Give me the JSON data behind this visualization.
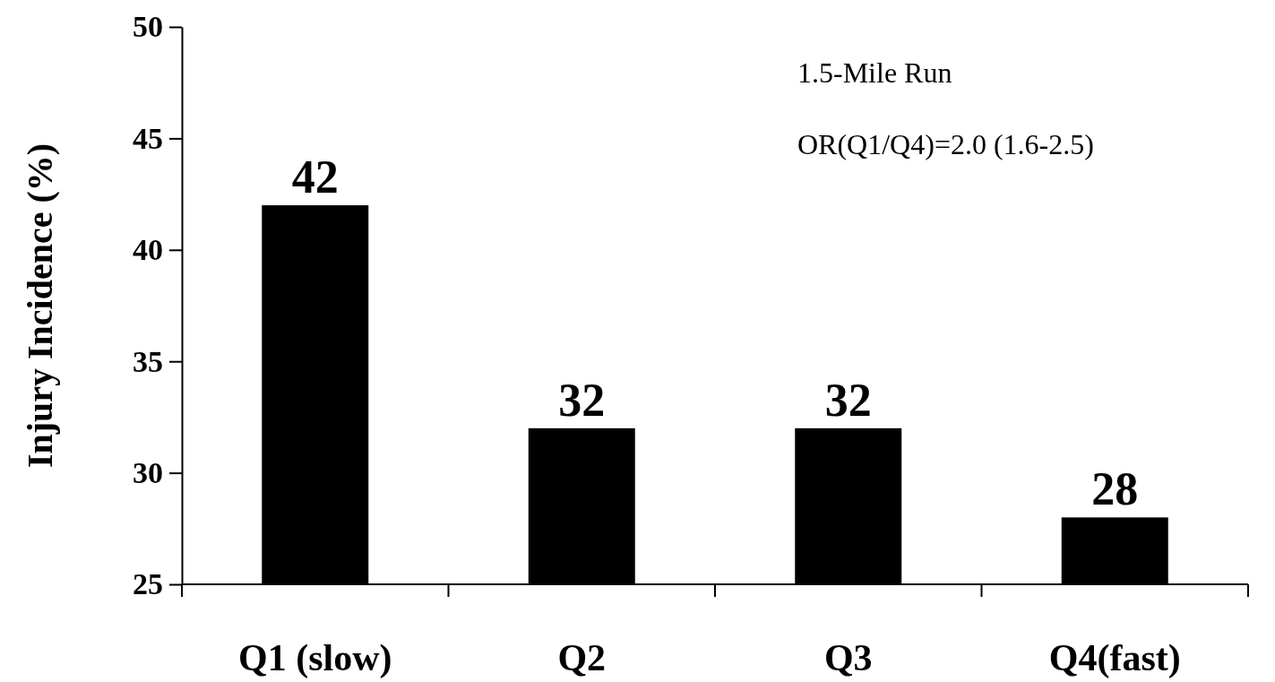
{
  "chart_data": {
    "type": "bar",
    "ylabel": "Injury Incidence (%)",
    "categories": [
      "Q1 (slow)",
      "Q2",
      "Q3",
      "Q4(fast)"
    ],
    "values": [
      42,
      32,
      32,
      28
    ],
    "color": "#000000",
    "ylim": [
      25,
      50
    ],
    "yticks": [
      25,
      30,
      35,
      40,
      45,
      50
    ],
    "grid": false,
    "data_labels": true,
    "annotations": [
      "1.5-Mile Run",
      "OR(Q1/Q4)=2.0 (1.6-2.5)"
    ]
  }
}
